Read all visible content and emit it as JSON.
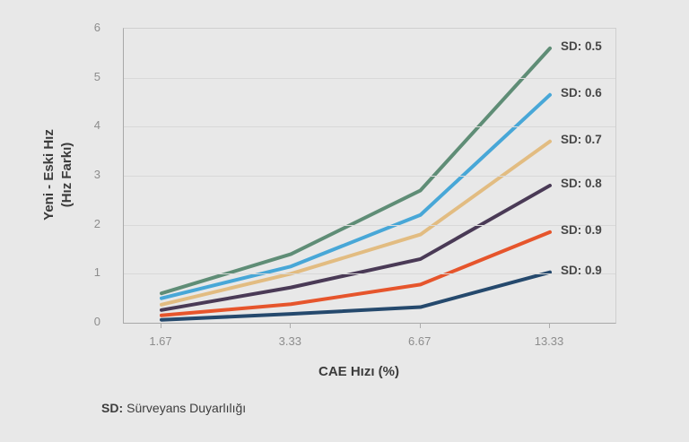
{
  "colors": {
    "background": "#e8e8e8",
    "gridline": "#d8d8d8",
    "axis_line": "#a8a8a8",
    "tick_text": "#8d8d8d",
    "label_text": "#3b3b3b"
  },
  "chart_data": {
    "type": "line",
    "x_categories": [
      "1.67",
      "3.33",
      "6.67",
      "13.33"
    ],
    "xlabel": "CAE Hızı (%)",
    "ylabel_line1": "Yeni - Eski Hız",
    "ylabel_line2": "(Hız Farkı)",
    "ylim": [
      0,
      6
    ],
    "yticks": [
      0,
      1,
      2,
      3,
      4,
      5,
      6
    ],
    "grid": true,
    "legend_position": "right-of-line-ends",
    "series": [
      {
        "name": "SD: 0.5",
        "color": "#5f8d76",
        "values": [
          0.6,
          1.4,
          2.7,
          5.6
        ]
      },
      {
        "name": "SD: 0.6",
        "color": "#48a7d7",
        "values": [
          0.5,
          1.15,
          2.2,
          4.65
        ]
      },
      {
        "name": "SD: 0.7",
        "color": "#e2bc81",
        "values": [
          0.37,
          1.0,
          1.8,
          3.7
        ]
      },
      {
        "name": "SD: 0.8",
        "color": "#4a3a56",
        "values": [
          0.26,
          0.72,
          1.3,
          2.8
        ]
      },
      {
        "name": "SD: 0.9",
        "color": "#e6552c",
        "values": [
          0.15,
          0.38,
          0.78,
          1.85
        ]
      },
      {
        "name": "SD: 0.9",
        "color": "#25496d",
        "values": [
          0.06,
          0.18,
          0.32,
          1.03
        ]
      }
    ]
  },
  "footnote": {
    "abbr": "SD:",
    "text": "Sürveyans Duyarlılığı"
  }
}
